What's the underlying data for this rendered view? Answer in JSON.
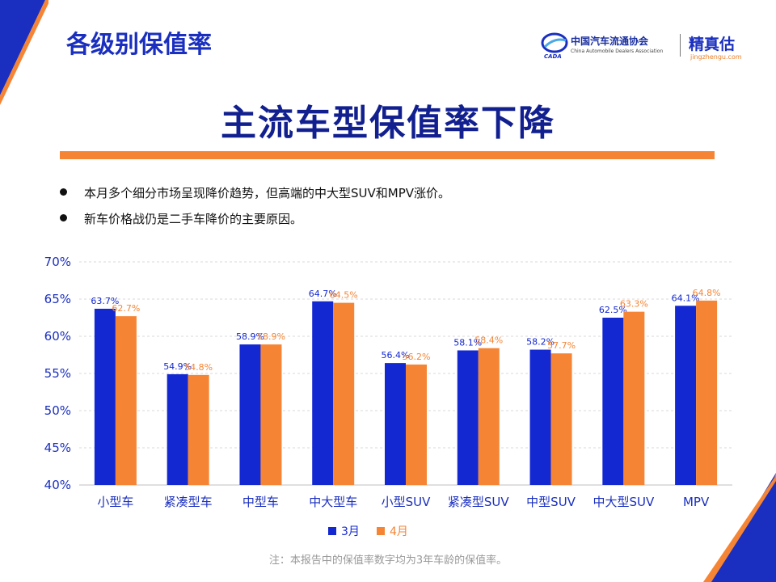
{
  "header": {
    "section_title": "各级别保值率",
    "association_name": "中国汽车流通协会",
    "association_name_en": "China Automobile Dealers Association",
    "association_abbr": "CADA",
    "brand_name": "精真估",
    "brand_url": "jingzhengu.com"
  },
  "headline": "主流车型保值率下降",
  "bullets": [
    "本月多个细分市场呈现降价趋势，但高端的中大型SUV和MPV涨价。",
    "新车价格战仍是二手车降价的主要原因。"
  ],
  "chart_data": {
    "type": "bar",
    "categories": [
      "小型车",
      "紧凑型车",
      "中型车",
      "中大型车",
      "小型SUV",
      "紧凑型SUV",
      "中型SUV",
      "中大型SUV",
      "MPV"
    ],
    "series": [
      {
        "name": "3月",
        "values": [
          63.7,
          54.9,
          58.9,
          64.7,
          56.4,
          58.1,
          58.2,
          62.5,
          64.1
        ],
        "color": "#1328d1"
      },
      {
        "name": "4月",
        "values": [
          62.7,
          54.8,
          58.9,
          64.5,
          56.2,
          58.4,
          57.7,
          63.3,
          64.8
        ],
        "color": "#f58534"
      }
    ],
    "ylim": [
      40,
      70
    ],
    "yticks": [
      "40%",
      "45%",
      "50%",
      "55%",
      "60%",
      "65%",
      "70%"
    ],
    "grid": true,
    "legend_position": "bottom-center"
  },
  "note": "注：本报告中的保值率数字均为3年车龄的保值率。",
  "colors": {
    "primary_blue": "#1a2fbf",
    "accent_orange": "#f58534",
    "bar_blue": "#1328d1",
    "bar_orange": "#f58534"
  }
}
